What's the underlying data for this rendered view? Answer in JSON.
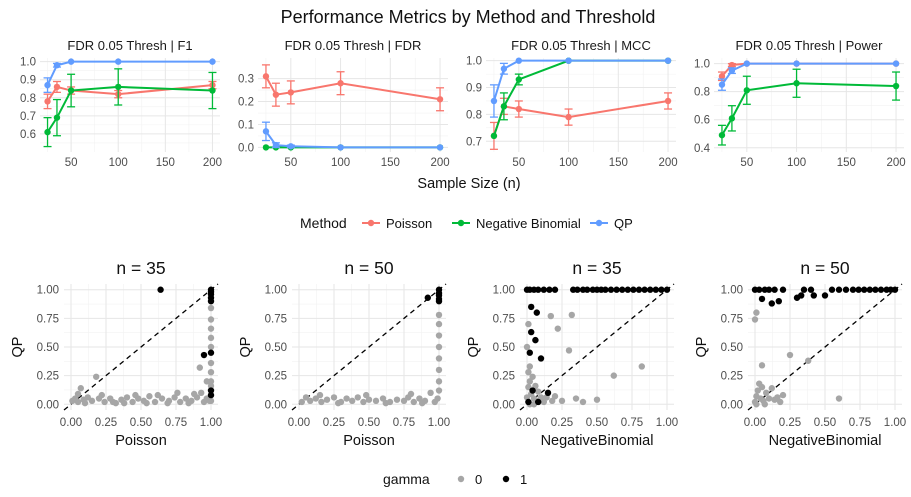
{
  "title": "Performance Metrics by Method and Threshold",
  "top_xlabel": "Sample Size (n)",
  "method_legend": {
    "title": "Method",
    "items": [
      {
        "label": "Poisson",
        "color": "#F8766D"
      },
      {
        "label": "Negative Binomial",
        "color": "#00BA38"
      },
      {
        "label": "QP",
        "color": "#619CFF"
      }
    ]
  },
  "gamma_legend": {
    "title": "gamma",
    "items": [
      {
        "label": "0",
        "color": "#A6A6A6"
      },
      {
        "label": "1",
        "color": "#000000"
      }
    ]
  },
  "chart_data": [
    {
      "type": "line",
      "strip": "FDR 0.05 Thresh | F1",
      "x": [
        25,
        35,
        50,
        100,
        200
      ],
      "xticks": [
        50,
        100,
        150,
        200
      ],
      "xlim": [
        17,
        208
      ],
      "ylim": [
        0.5,
        1.02
      ],
      "yticks": [
        0.6,
        0.7,
        0.8,
        0.9,
        1.0
      ],
      "ytick_labels": [
        "0.6",
        "0.7",
        "0.8",
        "0.9",
        "1.0"
      ],
      "series": [
        {
          "name": "Poisson",
          "values": [
            0.78,
            0.86,
            0.84,
            0.82,
            0.87
          ],
          "err": [
            0.04,
            0.03,
            0.02,
            0.02,
            0.02
          ]
        },
        {
          "name": "Negative Binomial",
          "values": [
            0.61,
            0.69,
            0.84,
            0.86,
            0.84
          ],
          "err": [
            0.08,
            0.1,
            0.09,
            0.1,
            0.1
          ]
        },
        {
          "name": "QP",
          "values": [
            0.87,
            0.98,
            1.0,
            1.0,
            1.0
          ],
          "err": [
            0.04,
            0.01,
            0.0,
            0.0,
            0.0
          ]
        }
      ]
    },
    {
      "type": "line",
      "strip": "FDR 0.05 Thresh | FDR",
      "x": [
        25,
        35,
        50,
        100,
        200
      ],
      "xticks": [
        50,
        100,
        150,
        200
      ],
      "xlim": [
        17,
        208
      ],
      "ylim": [
        -0.02,
        0.39
      ],
      "yticks": [
        0.0,
        0.1,
        0.2,
        0.3
      ],
      "ytick_labels": [
        "0.0",
        "0.1",
        "0.2",
        "0.3"
      ],
      "series": [
        {
          "name": "Poisson",
          "values": [
            0.31,
            0.23,
            0.24,
            0.28,
            0.21
          ],
          "err": [
            0.05,
            0.05,
            0.05,
            0.05,
            0.05
          ]
        },
        {
          "name": "Negative Binomial",
          "values": [
            0.0,
            0.0,
            0.0,
            0.0,
            0.0
          ],
          "err": [
            0.0,
            0.0,
            0.0,
            0.0,
            0.0
          ]
        },
        {
          "name": "QP",
          "values": [
            0.07,
            0.01,
            0.005,
            0.0,
            0.0
          ],
          "err": [
            0.04,
            0.01,
            0.005,
            0.0,
            0.0
          ]
        }
      ]
    },
    {
      "type": "line",
      "strip": "FDR 0.05 Thresh | MCC",
      "x": [
        25,
        35,
        50,
        100,
        200
      ],
      "xticks": [
        50,
        100,
        150,
        200
      ],
      "xlim": [
        17,
        208
      ],
      "ylim": [
        0.66,
        1.01
      ],
      "yticks": [
        0.7,
        0.8,
        0.9,
        1.0
      ],
      "ytick_labels": [
        "0.7",
        "0.8",
        "0.9",
        "1.0"
      ],
      "series": [
        {
          "name": "Poisson",
          "values": [
            0.72,
            0.83,
            0.82,
            0.79,
            0.85
          ],
          "err": [
            0.05,
            0.03,
            0.03,
            0.03,
            0.03
          ]
        },
        {
          "name": "Negative Binomial",
          "values": [
            0.72,
            0.83,
            0.93,
            1.0,
            1.0
          ],
          "err": [
            0.0,
            0.05,
            0.02,
            0.0,
            0.0
          ]
        },
        {
          "name": "QP",
          "values": [
            0.85,
            0.97,
            1.0,
            1.0,
            1.0
          ],
          "err": [
            0.06,
            0.02,
            0.0,
            0.0,
            0.0
          ]
        }
      ]
    },
    {
      "type": "line",
      "strip": "FDR 0.05 Thresh | Power",
      "x": [
        25,
        35,
        50,
        100,
        200
      ],
      "xticks": [
        50,
        100,
        150,
        200
      ],
      "xlim": [
        17,
        208
      ],
      "ylim": [
        0.37,
        1.04
      ],
      "yticks": [
        0.4,
        0.6,
        0.8,
        1.0
      ],
      "ytick_labels": [
        "0.4",
        "0.6",
        "0.8",
        "1.0"
      ],
      "series": [
        {
          "name": "Poisson",
          "values": [
            0.91,
            0.99,
            1.0,
            1.0,
            1.0
          ],
          "err": [
            0.03,
            0.01,
            0.0,
            0.0,
            0.0
          ]
        },
        {
          "name": "Negative Binomial",
          "values": [
            0.49,
            0.61,
            0.81,
            0.86,
            0.84
          ],
          "err": [
            0.07,
            0.09,
            0.1,
            0.1,
            0.1
          ]
        },
        {
          "name": "QP",
          "values": [
            0.85,
            0.95,
            1.0,
            1.0,
            1.0
          ],
          "err": [
            0.04,
            0.02,
            0.0,
            0.0,
            0.0
          ]
        }
      ]
    },
    {
      "type": "scatter",
      "title": "n = 35",
      "xlabel": "Poisson",
      "ylabel": "QP",
      "xlim": [
        0,
        1
      ],
      "ylim": [
        0,
        1
      ],
      "ticks": [
        0.0,
        0.25,
        0.5,
        0.75,
        1.0
      ],
      "tick_labels": [
        "0.00",
        "0.25",
        "0.50",
        "0.75",
        "1.00"
      ],
      "diagonal": true,
      "points_gamma1": [
        [
          0.64,
          1.0
        ],
        [
          1.0,
          1.0
        ],
        [
          1.0,
          0.98
        ],
        [
          1.0,
          0.96
        ],
        [
          1.0,
          0.93
        ],
        [
          1.0,
          0.9
        ],
        [
          1.0,
          0.45
        ],
        [
          0.95,
          0.43
        ],
        [
          1.0,
          0.12
        ],
        [
          1.0,
          0.08
        ]
      ],
      "points_gamma0": [
        [
          0.01,
          0.03
        ],
        [
          0.03,
          0.05
        ],
        [
          0.05,
          0.02
        ],
        [
          0.07,
          0.14
        ],
        [
          0.09,
          0.04
        ],
        [
          0.12,
          0.06
        ],
        [
          0.15,
          0.03
        ],
        [
          0.18,
          0.24
        ],
        [
          0.2,
          0.05
        ],
        [
          0.24,
          0.02
        ],
        [
          0.28,
          0.05
        ],
        [
          0.32,
          0.01
        ],
        [
          0.36,
          0.04
        ],
        [
          0.4,
          0.06
        ],
        [
          0.44,
          0.02
        ],
        [
          0.48,
          0.05
        ],
        [
          0.52,
          0.03
        ],
        [
          0.56,
          0.07
        ],
        [
          0.6,
          0.02
        ],
        [
          0.65,
          0.05
        ],
        [
          0.7,
          0.03
        ],
        [
          0.74,
          0.06
        ],
        [
          0.78,
          0.02
        ],
        [
          0.82,
          0.05
        ],
        [
          0.86,
          0.03
        ],
        [
          0.9,
          0.06
        ],
        [
          0.93,
          0.1
        ],
        [
          0.95,
          0.02
        ],
        [
          0.97,
          0.2
        ],
        [
          0.97,
          0.05
        ],
        [
          0.99,
          0.03
        ],
        [
          1.0,
          0.84
        ],
        [
          1.0,
          0.74
        ],
        [
          1.0,
          0.66
        ],
        [
          1.0,
          0.58
        ],
        [
          1.0,
          0.5
        ],
        [
          1.0,
          0.36
        ],
        [
          1.0,
          0.28
        ],
        [
          1.0,
          0.2
        ],
        [
          1.0,
          0.16
        ],
        [
          1.0,
          0.03
        ],
        [
          0.05,
          0.09
        ],
        [
          0.1,
          0.01
        ],
        [
          0.22,
          0.08
        ],
        [
          0.3,
          0.02
        ],
        [
          0.38,
          0.01
        ],
        [
          0.46,
          0.08
        ],
        [
          0.54,
          0.01
        ],
        [
          0.62,
          0.08
        ],
        [
          0.69,
          0.01
        ],
        [
          0.76,
          0.1
        ],
        [
          0.84,
          0.01
        ],
        [
          0.88,
          0.09
        ],
        [
          0.92,
          0.32
        ]
      ]
    },
    {
      "type": "scatter",
      "title": "n = 50",
      "xlabel": "Poisson",
      "ylabel": "QP",
      "xlim": [
        0,
        1
      ],
      "ylim": [
        0,
        1
      ],
      "ticks": [
        0.0,
        0.25,
        0.5,
        0.75,
        1.0
      ],
      "tick_labels": [
        "0.00",
        "0.25",
        "0.50",
        "0.75",
        "1.00"
      ],
      "diagonal": true,
      "points_gamma1": [
        [
          0.92,
          0.93
        ],
        [
          1.0,
          1.0
        ],
        [
          1.0,
          0.97
        ],
        [
          1.0,
          0.95
        ],
        [
          1.0,
          0.92
        ],
        [
          1.0,
          0.9
        ]
      ],
      "points_gamma0": [
        [
          0.02,
          0.02
        ],
        [
          0.05,
          0.06
        ],
        [
          0.08,
          0.03
        ],
        [
          0.12,
          0.05
        ],
        [
          0.16,
          0.02
        ],
        [
          0.2,
          0.04
        ],
        [
          0.25,
          0.06
        ],
        [
          0.3,
          0.02
        ],
        [
          0.34,
          0.05
        ],
        [
          0.38,
          0.03
        ],
        [
          0.42,
          0.06
        ],
        [
          0.46,
          0.02
        ],
        [
          0.5,
          0.04
        ],
        [
          0.55,
          0.03
        ],
        [
          0.6,
          0.05
        ],
        [
          0.65,
          0.02
        ],
        [
          0.7,
          0.04
        ],
        [
          0.75,
          0.03
        ],
        [
          0.78,
          0.06
        ],
        [
          0.82,
          0.02
        ],
        [
          0.86,
          0.05
        ],
        [
          0.9,
          0.03
        ],
        [
          0.94,
          0.1
        ],
        [
          0.97,
          0.02
        ],
        [
          0.99,
          0.05
        ],
        [
          1.0,
          0.78
        ],
        [
          1.0,
          0.7
        ],
        [
          1.0,
          0.6
        ],
        [
          1.0,
          0.5
        ],
        [
          1.0,
          0.4
        ],
        [
          1.0,
          0.3
        ],
        [
          1.0,
          0.2
        ],
        [
          1.0,
          0.12
        ],
        [
          0.15,
          0.08
        ],
        [
          0.28,
          0.01
        ],
        [
          0.48,
          0.08
        ],
        [
          0.62,
          0.01
        ],
        [
          0.8,
          0.09
        ],
        [
          0.88,
          0.01
        ]
      ]
    },
    {
      "type": "scatter",
      "title": "n = 35",
      "xlabel": "NegativeBinomial",
      "ylabel": "QP",
      "xlim": [
        0,
        1
      ],
      "ylim": [
        0,
        1
      ],
      "ticks": [
        0.0,
        0.25,
        0.5,
        0.75,
        1.0
      ],
      "tick_labels": [
        "0.00",
        "0.25",
        "0.50",
        "0.75",
        "1.00"
      ],
      "diagonal": true,
      "points_gamma1": [
        [
          0.0,
          1.0
        ],
        [
          0.02,
          1.0
        ],
        [
          0.05,
          1.0
        ],
        [
          0.08,
          1.0
        ],
        [
          0.12,
          1.0
        ],
        [
          0.16,
          1.0
        ],
        [
          0.2,
          1.0
        ],
        [
          0.33,
          1.0
        ],
        [
          0.36,
          1.0
        ],
        [
          0.4,
          1.0
        ],
        [
          0.43,
          1.0
        ],
        [
          0.47,
          1.0
        ],
        [
          0.5,
          1.0
        ],
        [
          0.53,
          1.0
        ],
        [
          0.56,
          1.0
        ],
        [
          0.6,
          1.0
        ],
        [
          0.64,
          1.0
        ],
        [
          0.68,
          1.0
        ],
        [
          0.72,
          1.0
        ],
        [
          0.76,
          1.0
        ],
        [
          0.8,
          1.0
        ],
        [
          0.84,
          1.0
        ],
        [
          0.88,
          1.0
        ],
        [
          0.92,
          1.0
        ],
        [
          0.96,
          1.0
        ],
        [
          1.0,
          1.0
        ],
        [
          0.03,
          0.85
        ],
        [
          0.07,
          0.8
        ],
        [
          0.03,
          0.63
        ],
        [
          0.06,
          0.56
        ],
        [
          0.02,
          0.45
        ],
        [
          0.1,
          0.4
        ],
        [
          0.04,
          0.12
        ],
        [
          0.15,
          0.1
        ],
        [
          0.08,
          0.02
        ],
        [
          0.01,
          0.02
        ]
      ],
      "points_gamma0": [
        [
          0.0,
          0.06
        ],
        [
          0.01,
          0.15
        ],
        [
          0.01,
          0.28
        ],
        [
          0.02,
          0.33
        ],
        [
          0.02,
          0.2
        ],
        [
          0.03,
          0.09
        ],
        [
          0.04,
          0.24
        ],
        [
          0.05,
          0.05
        ],
        [
          0.06,
          0.16
        ],
        [
          0.07,
          0.03
        ],
        [
          0.08,
          0.11
        ],
        [
          0.1,
          0.06
        ],
        [
          0.12,
          0.02
        ],
        [
          0.14,
          0.06
        ],
        [
          0.17,
          0.77
        ],
        [
          0.18,
          0.03
        ],
        [
          0.2,
          0.07
        ],
        [
          0.22,
          0.66
        ],
        [
          0.25,
          0.03
        ],
        [
          0.3,
          0.47
        ],
        [
          0.32,
          0.78
        ],
        [
          0.35,
          0.05
        ],
        [
          0.4,
          0.02
        ],
        [
          0.5,
          0.04
        ],
        [
          0.62,
          0.25
        ],
        [
          0.82,
          0.33
        ],
        [
          0.02,
          0.0
        ],
        [
          0.05,
          0.0
        ],
        [
          0.0,
          0.5
        ],
        [
          0.01,
          0.7
        ]
      ]
    },
    {
      "type": "scatter",
      "title": "n = 50",
      "xlabel": "NegativeBinomial",
      "ylabel": "QP",
      "xlim": [
        0,
        1
      ],
      "ylim": [
        0,
        1
      ],
      "ticks": [
        0.0,
        0.25,
        0.5,
        0.75,
        1.0
      ],
      "tick_labels": [
        "0.00",
        "0.25",
        "0.50",
        "0.75",
        "1.00"
      ],
      "diagonal": true,
      "points_gamma1": [
        [
          0.0,
          1.0
        ],
        [
          0.03,
          1.0
        ],
        [
          0.07,
          1.0
        ],
        [
          0.1,
          1.0
        ],
        [
          0.14,
          1.0
        ],
        [
          0.2,
          1.0
        ],
        [
          0.35,
          1.0
        ],
        [
          0.4,
          1.0
        ],
        [
          0.55,
          1.0
        ],
        [
          0.6,
          1.0
        ],
        [
          0.65,
          1.0
        ],
        [
          0.7,
          1.0
        ],
        [
          0.74,
          1.0
        ],
        [
          0.78,
          1.0
        ],
        [
          0.82,
          1.0
        ],
        [
          0.86,
          1.0
        ],
        [
          0.9,
          1.0
        ],
        [
          0.94,
          1.0
        ],
        [
          0.97,
          1.0
        ],
        [
          1.0,
          1.0
        ],
        [
          0.12,
          0.88
        ],
        [
          0.17,
          0.9
        ],
        [
          0.33,
          0.95
        ],
        [
          0.42,
          0.95
        ],
        [
          0.05,
          0.92
        ],
        [
          0.3,
          0.93
        ],
        [
          0.5,
          0.95
        ]
      ],
      "points_gamma0": [
        [
          0.0,
          0.02
        ],
        [
          0.01,
          0.07
        ],
        [
          0.02,
          0.12
        ],
        [
          0.03,
          0.18
        ],
        [
          0.04,
          0.05
        ],
        [
          0.05,
          0.15
        ],
        [
          0.06,
          0.03
        ],
        [
          0.08,
          0.1
        ],
        [
          0.1,
          0.05
        ],
        [
          0.12,
          0.14
        ],
        [
          0.14,
          0.04
        ],
        [
          0.16,
          0.06
        ],
        [
          0.18,
          0.02
        ],
        [
          0.2,
          0.08
        ],
        [
          0.01,
          0.8
        ],
        [
          0.0,
          0.74
        ],
        [
          0.05,
          0.34
        ],
        [
          0.25,
          0.43
        ],
        [
          0.38,
          0.38
        ],
        [
          0.6,
          0.05
        ],
        [
          0.01,
          0.0
        ],
        [
          0.07,
          0.0
        ]
      ]
    }
  ]
}
